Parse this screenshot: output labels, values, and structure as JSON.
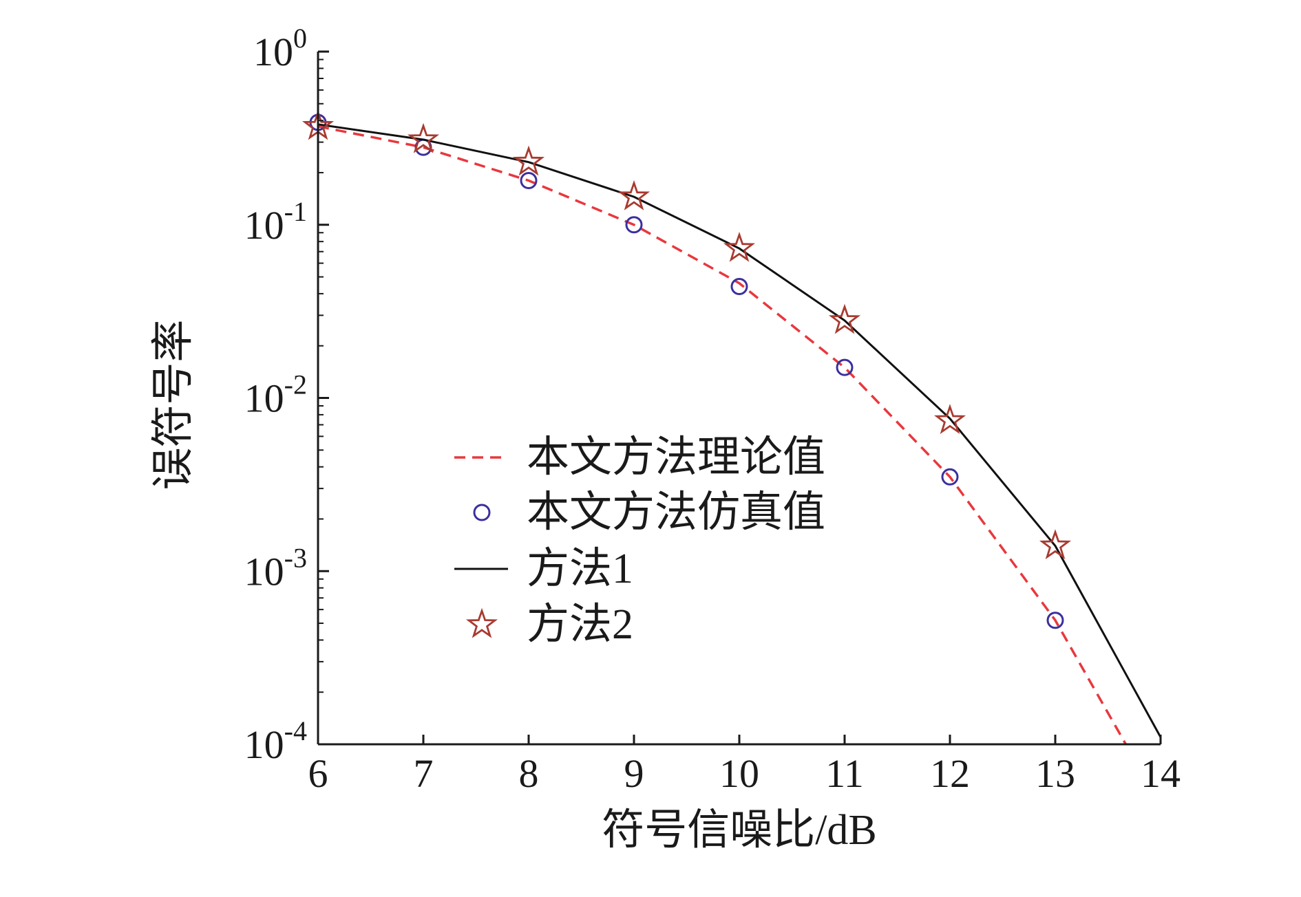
{
  "chart_data": {
    "type": "line",
    "title": "",
    "xlabel": "符号信噪比/dB",
    "ylabel": "误符号率",
    "xlim": [
      6,
      14
    ],
    "ylim": [
      0.0001,
      1
    ],
    "yscale": "log",
    "grid": false,
    "legend_position": "center-left",
    "x_ticks": [
      "6",
      "7",
      "8",
      "9",
      "10",
      "11",
      "12",
      "13",
      "14"
    ],
    "y_ticks": [
      {
        "value": 1,
        "base": "10",
        "exp": "0"
      },
      {
        "value": 0.1,
        "base": "10",
        "exp": "-1"
      },
      {
        "value": 0.01,
        "base": "10",
        "exp": "-2"
      },
      {
        "value": 0.001,
        "base": "10",
        "exp": "-3"
      },
      {
        "value": 0.0001,
        "base": "10",
        "exp": "-4"
      }
    ],
    "series": [
      {
        "name": "本文方法理论值",
        "style": "dashed-line",
        "color": "#e8383d",
        "x": [
          6,
          7,
          8,
          9,
          10,
          11,
          12,
          13,
          13.67
        ],
        "y": [
          0.37,
          0.28,
          0.18,
          0.1,
          0.046,
          0.015,
          0.0035,
          0.00052,
          0.0001
        ]
      },
      {
        "name": "本文方法仿真值",
        "style": "circle-marker",
        "color": "#3b2f9e",
        "x": [
          6,
          7,
          8,
          9,
          10,
          11,
          12,
          13
        ],
        "y": [
          0.39,
          0.28,
          0.18,
          0.1,
          0.044,
          0.015,
          0.0035,
          0.00052
        ]
      },
      {
        "name": "方法1",
        "style": "solid-line",
        "color": "#111111",
        "x": [
          6,
          7,
          8,
          9,
          10,
          11,
          12,
          13,
          14
        ],
        "y": [
          0.38,
          0.31,
          0.23,
          0.145,
          0.073,
          0.028,
          0.0076,
          0.0014,
          0.00011
        ]
      },
      {
        "name": "方法2",
        "style": "star-marker",
        "color": "#a83a30",
        "x": [
          6,
          7,
          8,
          9,
          10,
          11,
          12,
          13
        ],
        "y": [
          0.37,
          0.31,
          0.23,
          0.145,
          0.073,
          0.028,
          0.0074,
          0.0014
        ]
      }
    ]
  }
}
